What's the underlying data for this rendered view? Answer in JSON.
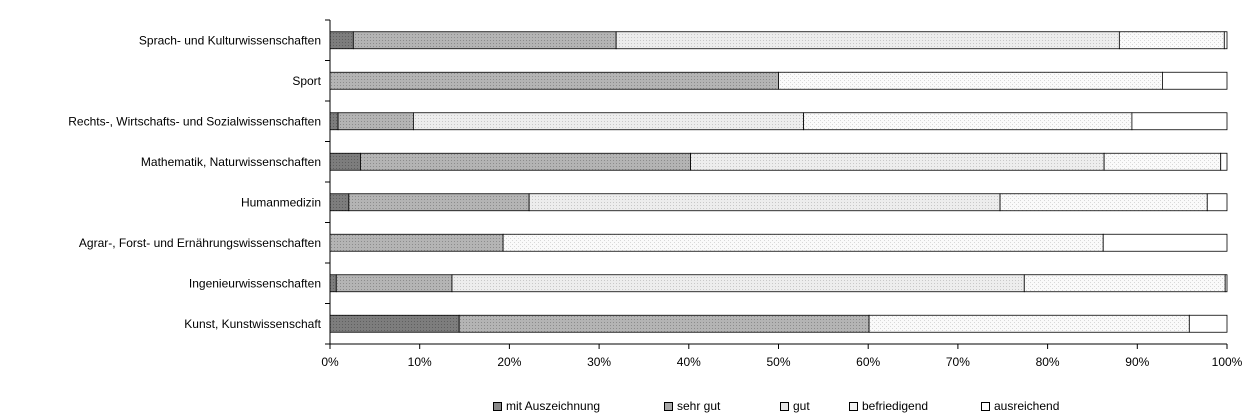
{
  "chart_data": {
    "type": "bar",
    "orientation": "horizontal",
    "stacked": "percent",
    "categories": [
      "Sprach- und Kulturwissenschaften",
      "Sport",
      "Rechts-, Wirtschafts- und Sozialwissenschaften",
      "Mathematik, Naturwissenschaften",
      "Humanmedizin",
      "Agrar-, Forst- und Ernährungswissenschaften",
      "Ingenieurwissenschaften",
      "Kunst, Kunstwissenschaft"
    ],
    "series": [
      {
        "name": "mit Auszeichnung",
        "values": [
          2.6,
          0.0,
          0.9,
          3.4,
          2.1,
          0.0,
          0.7,
          14.4
        ]
      },
      {
        "name": "sehr gut",
        "values": [
          29.3,
          50.0,
          8.4,
          36.8,
          20.1,
          19.3,
          12.9,
          45.7
        ]
      },
      {
        "name": "gut",
        "values": [
          56.1,
          0.0,
          43.5,
          46.1,
          52.5,
          0.0,
          63.8,
          0.0
        ]
      },
      {
        "name": "befriedigend",
        "values": [
          11.7,
          42.8,
          36.6,
          13.0,
          23.1,
          66.9,
          22.4,
          35.7
        ]
      },
      {
        "name": "ausreichend",
        "values": [
          0.3,
          7.2,
          10.6,
          0.7,
          2.2,
          13.8,
          0.2,
          4.2
        ]
      }
    ],
    "xlim": [
      0,
      100
    ],
    "x_ticks": [
      "0%",
      "10%",
      "20%",
      "30%",
      "40%",
      "50%",
      "60%",
      "70%",
      "80%",
      "90%",
      "100%"
    ],
    "grid": false,
    "legend_position": "bottom",
    "colors": [
      "#8a8a8a",
      "#a8a8a8",
      "#e6e6e6",
      "#f3f3f3",
      "#ffffff"
    ]
  }
}
